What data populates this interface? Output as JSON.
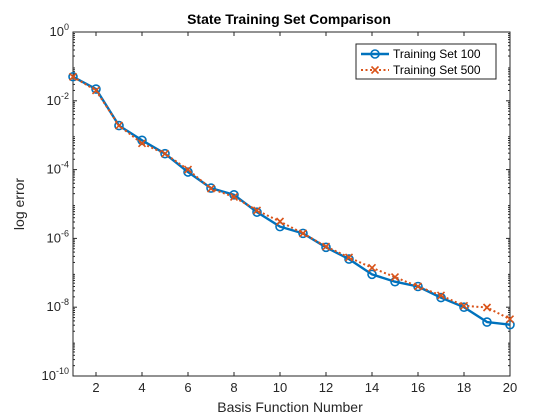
{
  "chart_data": {
    "type": "line",
    "title": "State Training Set Comparison",
    "xlabel": "Basis Function Number",
    "ylabel": "log error",
    "y_scale": "log",
    "xlim": [
      1,
      20
    ],
    "ylim": [
      1e-10,
      1
    ],
    "x_ticks": [
      2,
      4,
      6,
      8,
      10,
      12,
      14,
      16,
      18,
      20
    ],
    "y_ticks": [
      {
        "base": "10",
        "exp": "-10",
        "value": 1e-10
      },
      {
        "base": "10",
        "exp": "-8",
        "value": 1e-08
      },
      {
        "base": "10",
        "exp": "-6",
        "value": 1e-06
      },
      {
        "base": "10",
        "exp": "-4",
        "value": 0.0001
      },
      {
        "base": "10",
        "exp": "-2",
        "value": 0.01
      },
      {
        "base": "10",
        "exp": "0",
        "value": 1
      }
    ],
    "grid": false,
    "legend_position": "top-right",
    "x": [
      1,
      2,
      3,
      4,
      5,
      6,
      7,
      8,
      9,
      10,
      11,
      12,
      13,
      14,
      15,
      16,
      17,
      18,
      19,
      20
    ],
    "series": [
      {
        "name": "Training Set 100",
        "color": "#0072bd",
        "line_style": "solid",
        "marker": "circle",
        "values": [
          0.05,
          0.022,
          0.0019,
          0.00071,
          0.00029,
          8.5e-05,
          2.9e-05,
          1.85e-05,
          5.8e-06,
          2.2e-06,
          1.4e-06,
          5.5e-07,
          2.5e-07,
          9e-08,
          5.5e-08,
          4e-08,
          1.9e-08,
          1e-08,
          3.7e-09,
          3.1e-09
        ]
      },
      {
        "name": "Training Set 500",
        "color": "#d95319",
        "line_style": "dotted",
        "marker": "x",
        "values": [
          0.05,
          0.02,
          0.0019,
          0.00058,
          0.00029,
          0.0001,
          2.8e-05,
          1.6e-05,
          6.5e-06,
          3.1e-06,
          1.4e-06,
          5.8e-07,
          2.8e-07,
          1.4e-07,
          7.5e-08,
          4e-08,
          2.2e-08,
          1.1e-08,
          9.8e-09,
          4.5e-09
        ]
      }
    ]
  }
}
